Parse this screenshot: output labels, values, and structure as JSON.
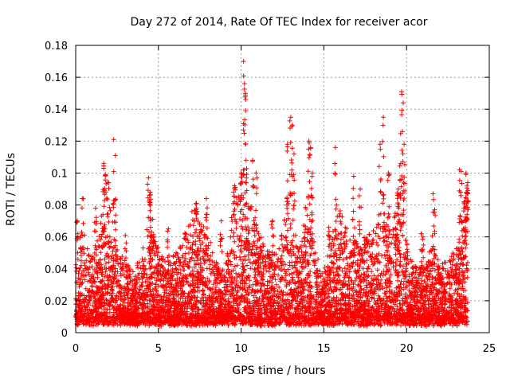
{
  "chart_data": {
    "type": "scatter",
    "title": "Day 272 of 2014, Rate Of TEC Index for receiver acor",
    "xlabel": "GPS time / hours",
    "ylabel": "ROTI / TECUs",
    "xlim": [
      0,
      25
    ],
    "ylim": [
      0,
      0.18
    ],
    "xticks": [
      0,
      5,
      10,
      15,
      20,
      25
    ],
    "xtick_labels": [
      "0",
      "5",
      "10",
      "15",
      "20",
      "25"
    ],
    "yticks": [
      0,
      0.02,
      0.04,
      0.06,
      0.08,
      0.1,
      0.12,
      0.14,
      0.16,
      0.18
    ],
    "ytick_labels": [
      "0",
      "0.02",
      "0.04",
      "0.06",
      "0.08",
      "0.1",
      "0.12",
      "0.14",
      "0.16",
      "0.18"
    ],
    "grid": true,
    "marker": "+",
    "marker_color": "#ff0000",
    "data_x_range": [
      0,
      23.7
    ],
    "envelope": [
      [
        0.0,
        0.05
      ],
      [
        0.5,
        0.06
      ],
      [
        1.0,
        0.045
      ],
      [
        1.5,
        0.07
      ],
      [
        2.0,
        0.095
      ],
      [
        2.5,
        0.05
      ],
      [
        3.0,
        0.04
      ],
      [
        3.5,
        0.035
      ],
      [
        4.0,
        0.045
      ],
      [
        4.5,
        0.075
      ],
      [
        5.0,
        0.05
      ],
      [
        5.5,
        0.04
      ],
      [
        6.0,
        0.045
      ],
      [
        6.5,
        0.055
      ],
      [
        7.0,
        0.075
      ],
      [
        7.5,
        0.07
      ],
      [
        8.0,
        0.06
      ],
      [
        8.5,
        0.04
      ],
      [
        9.0,
        0.035
      ],
      [
        9.5,
        0.08
      ],
      [
        10.0,
        0.09
      ],
      [
        10.5,
        0.08
      ],
      [
        11.0,
        0.06
      ],
      [
        11.5,
        0.05
      ],
      [
        12.0,
        0.045
      ],
      [
        12.5,
        0.06
      ],
      [
        13.0,
        0.09
      ],
      [
        13.5,
        0.05
      ],
      [
        14.0,
        0.09
      ],
      [
        14.5,
        0.045
      ],
      [
        15.0,
        0.035
      ],
      [
        15.5,
        0.06
      ],
      [
        16.0,
        0.075
      ],
      [
        16.5,
        0.06
      ],
      [
        17.0,
        0.06
      ],
      [
        17.5,
        0.055
      ],
      [
        18.0,
        0.06
      ],
      [
        18.5,
        0.08
      ],
      [
        19.0,
        0.065
      ],
      [
        19.5,
        0.08
      ],
      [
        20.0,
        0.055
      ],
      [
        20.5,
        0.04
      ],
      [
        21.0,
        0.035
      ],
      [
        21.5,
        0.05
      ],
      [
        22.0,
        0.04
      ],
      [
        22.5,
        0.04
      ],
      [
        23.0,
        0.05
      ],
      [
        23.5,
        0.075
      ]
    ],
    "spikes": [
      [
        0.1,
        0.07
      ],
      [
        0.4,
        0.084
      ],
      [
        1.2,
        0.078
      ],
      [
        1.7,
        0.106
      ],
      [
        1.8,
        0.099
      ],
      [
        2.3,
        0.121
      ],
      [
        2.4,
        0.111
      ],
      [
        4.4,
        0.097
      ],
      [
        4.5,
        0.088
      ],
      [
        7.3,
        0.081
      ],
      [
        7.9,
        0.084
      ],
      [
        9.6,
        0.092
      ],
      [
        10.0,
        0.1
      ],
      [
        10.15,
        0.17
      ],
      [
        10.2,
        0.156
      ],
      [
        10.25,
        0.15
      ],
      [
        10.3,
        0.108
      ],
      [
        10.7,
        0.108
      ],
      [
        10.9,
        0.1
      ],
      [
        12.8,
        0.118
      ],
      [
        13.0,
        0.135
      ],
      [
        13.1,
        0.13
      ],
      [
        13.2,
        0.112
      ],
      [
        14.1,
        0.12
      ],
      [
        14.2,
        0.116
      ],
      [
        14.3,
        0.1
      ],
      [
        15.7,
        0.116
      ],
      [
        16.8,
        0.098
      ],
      [
        18.4,
        0.118
      ],
      [
        18.6,
        0.135
      ],
      [
        18.9,
        0.1
      ],
      [
        19.5,
        0.09
      ],
      [
        19.7,
        0.151
      ],
      [
        19.8,
        0.144
      ],
      [
        19.75,
        0.126
      ],
      [
        19.85,
        0.118
      ],
      [
        19.65,
        0.106
      ],
      [
        21.6,
        0.087
      ],
      [
        21.7,
        0.077
      ],
      [
        23.2,
        0.102
      ],
      [
        23.3,
        0.101
      ],
      [
        23.6,
        0.1
      ],
      [
        23.7,
        0.094
      ],
      [
        23.65,
        0.088
      ],
      [
        23.5,
        0.082
      ],
      [
        23.6,
        0.07
      ],
      [
        20.9,
        0.062
      ],
      [
        21.0,
        0.06
      ],
      [
        3.0,
        0.061
      ],
      [
        5.6,
        0.065
      ],
      [
        8.8,
        0.07
      ],
      [
        11.9,
        0.07
      ],
      [
        15.3,
        0.066
      ],
      [
        17.2,
        0.09
      ],
      [
        22.1,
        0.03
      ]
    ],
    "points_per_hour": 270
  }
}
